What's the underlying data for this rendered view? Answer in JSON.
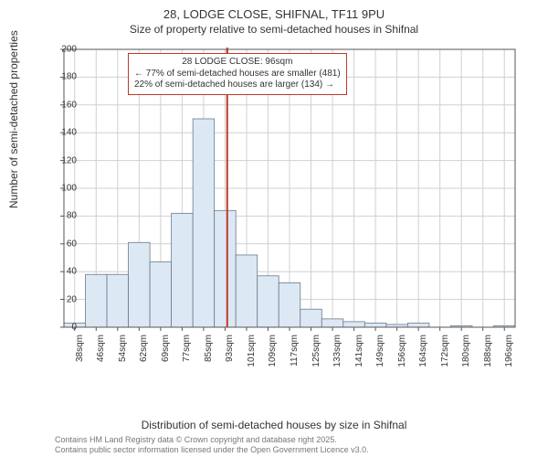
{
  "title_main": "28, LODGE CLOSE, SHIFNAL, TF11 9PU",
  "title_sub": "Size of property relative to semi-detached houses in Shifnal",
  "y_label": "Number of semi-detached properties",
  "x_label": "Distribution of semi-detached houses by size in Shifnal",
  "license_line1": "Contains HM Land Registry data © Crown copyright and database right 2025.",
  "license_line2": "Contains public sector information licensed under the Open Government Licence v3.0.",
  "chart": {
    "type": "histogram",
    "ylim": [
      0,
      200
    ],
    "ytick_step": 20,
    "categories": [
      "38sqm",
      "46sqm",
      "54sqm",
      "62sqm",
      "69sqm",
      "77sqm",
      "85sqm",
      "93sqm",
      "101sqm",
      "109sqm",
      "117sqm",
      "125sqm",
      "133sqm",
      "141sqm",
      "149sqm",
      "156sqm",
      "164sqm",
      "172sqm",
      "180sqm",
      "188sqm",
      "196sqm"
    ],
    "values": [
      3,
      38,
      38,
      61,
      47,
      82,
      150,
      84,
      52,
      37,
      32,
      13,
      6,
      4,
      3,
      2,
      3,
      0,
      1,
      0,
      1
    ],
    "bar_fill": "#dce8f4",
    "bar_stroke": "#6b7b8c",
    "grid_color": "#d0d0d0",
    "axis_color": "#555555",
    "background_color": "#ffffff",
    "bar_width_ratio": 1.0,
    "reference_line": {
      "value_index": 7.6,
      "color": "#c0392b",
      "width": 2
    }
  },
  "callout": {
    "title": "28 LODGE CLOSE: 96sqm",
    "line1": "← 77% of semi-detached houses are smaller (481)",
    "line2": "22% of semi-detached houses are larger (134) →",
    "border_color": "#c0392b"
  },
  "fonts": {
    "title_size": 13,
    "subtitle_size": 12,
    "label_size": 12,
    "tick_size": 10,
    "callout_size": 10,
    "license_size": 9
  }
}
